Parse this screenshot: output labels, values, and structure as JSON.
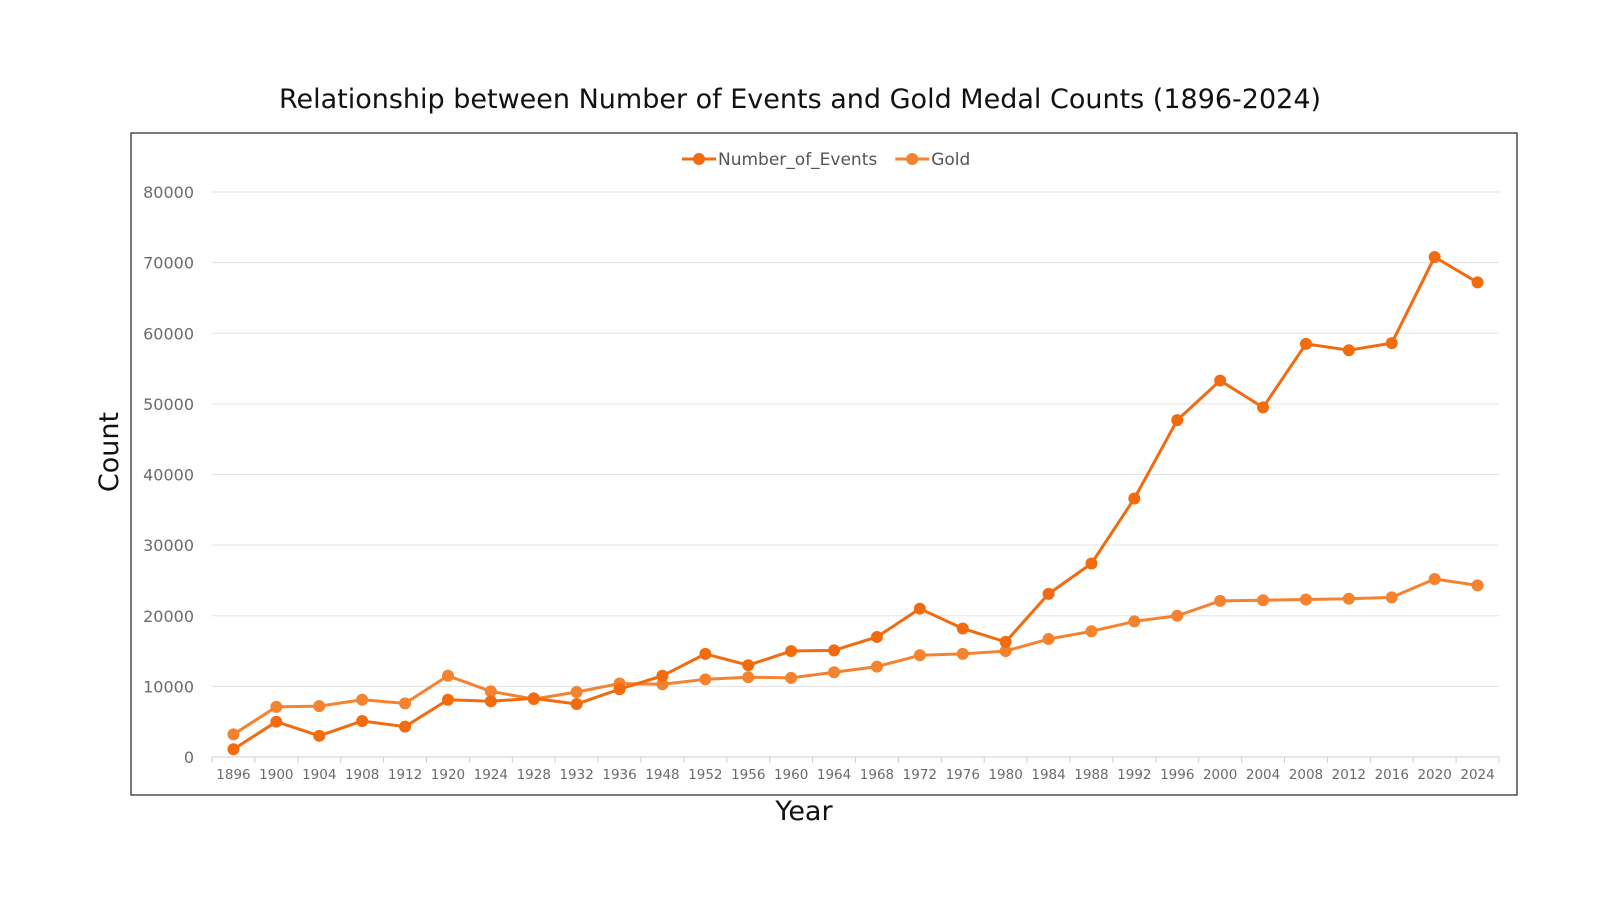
{
  "chart_data": {
    "type": "line",
    "title": "Relationship between Number of Events and Gold Medal Counts (1896-2024)",
    "xlabel": "Year",
    "ylabel": "Count",
    "ylim": [
      0,
      80000
    ],
    "yticks": [
      0,
      10000,
      20000,
      30000,
      40000,
      50000,
      60000,
      70000,
      80000
    ],
    "grid": "horizontal",
    "legend_position": "top-center",
    "categories": [
      "1896",
      "1900",
      "1904",
      "1908",
      "1912",
      "1920",
      "1924",
      "1928",
      "1932",
      "1936",
      "1948",
      "1952",
      "1956",
      "1960",
      "1964",
      "1968",
      "1972",
      "1976",
      "1980",
      "1984",
      "1988",
      "1992",
      "1996",
      "2000",
      "2004",
      "2008",
      "2012",
      "2016",
      "2020",
      "2024"
    ],
    "series": [
      {
        "name": "Number_of_Events",
        "color": "#f26b0f",
        "values": [
          1100,
          5000,
          3000,
          5100,
          4300,
          8100,
          7900,
          8300,
          7500,
          9600,
          11500,
          14600,
          13000,
          15000,
          15100,
          17000,
          21000,
          18200,
          16300,
          23100,
          27400,
          36600,
          47700,
          53300,
          49500,
          58500,
          57600,
          58600,
          70800,
          67200
        ]
      },
      {
        "name": "Gold",
        "color": "#f5822e",
        "values": [
          3200,
          7100,
          7200,
          8100,
          7600,
          11500,
          9300,
          8200,
          9200,
          10400,
          10300,
          11000,
          11300,
          11200,
          12000,
          12800,
          14400,
          14600,
          15000,
          16700,
          17800,
          19200,
          20000,
          22100,
          22200,
          22300,
          22400,
          22600,
          25200,
          24300
        ]
      }
    ]
  }
}
